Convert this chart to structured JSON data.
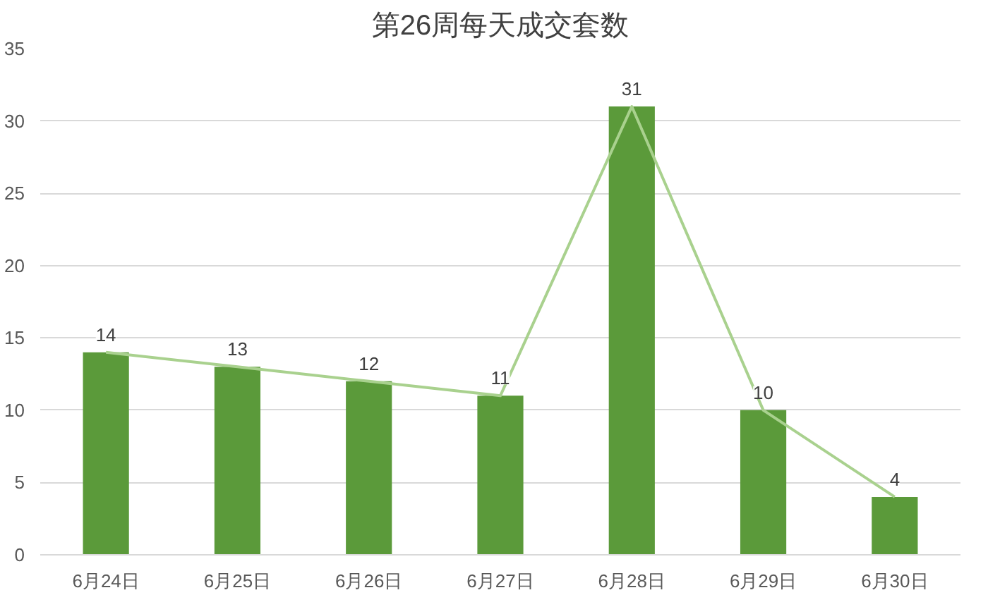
{
  "chart_data": {
    "type": "bar",
    "title": "第26周每天成交套数",
    "categories": [
      "6月24日",
      "6月25日",
      "6月26日",
      "6月27日",
      "6月28日",
      "6月29日",
      "6月30日"
    ],
    "series": [
      {
        "color": "#5b9a3a",
        "values": [
          14,
          13,
          12,
          11,
          31,
          10,
          4
        ],
        "value_labels": [
          "14",
          "13",
          "12",
          "11",
          "31",
          "10",
          "4"
        ]
      },
      {
        "type": "line",
        "color": "#a9d18e",
        "values": [
          14,
          13,
          12,
          11,
          31,
          10,
          4
        ]
      }
    ],
    "ylim": [
      0,
      35
    ],
    "yticks": [
      0,
      5,
      10,
      15,
      20,
      25,
      30,
      35
    ],
    "grid": "y",
    "marker": "none",
    "line_style": "solid"
  }
}
